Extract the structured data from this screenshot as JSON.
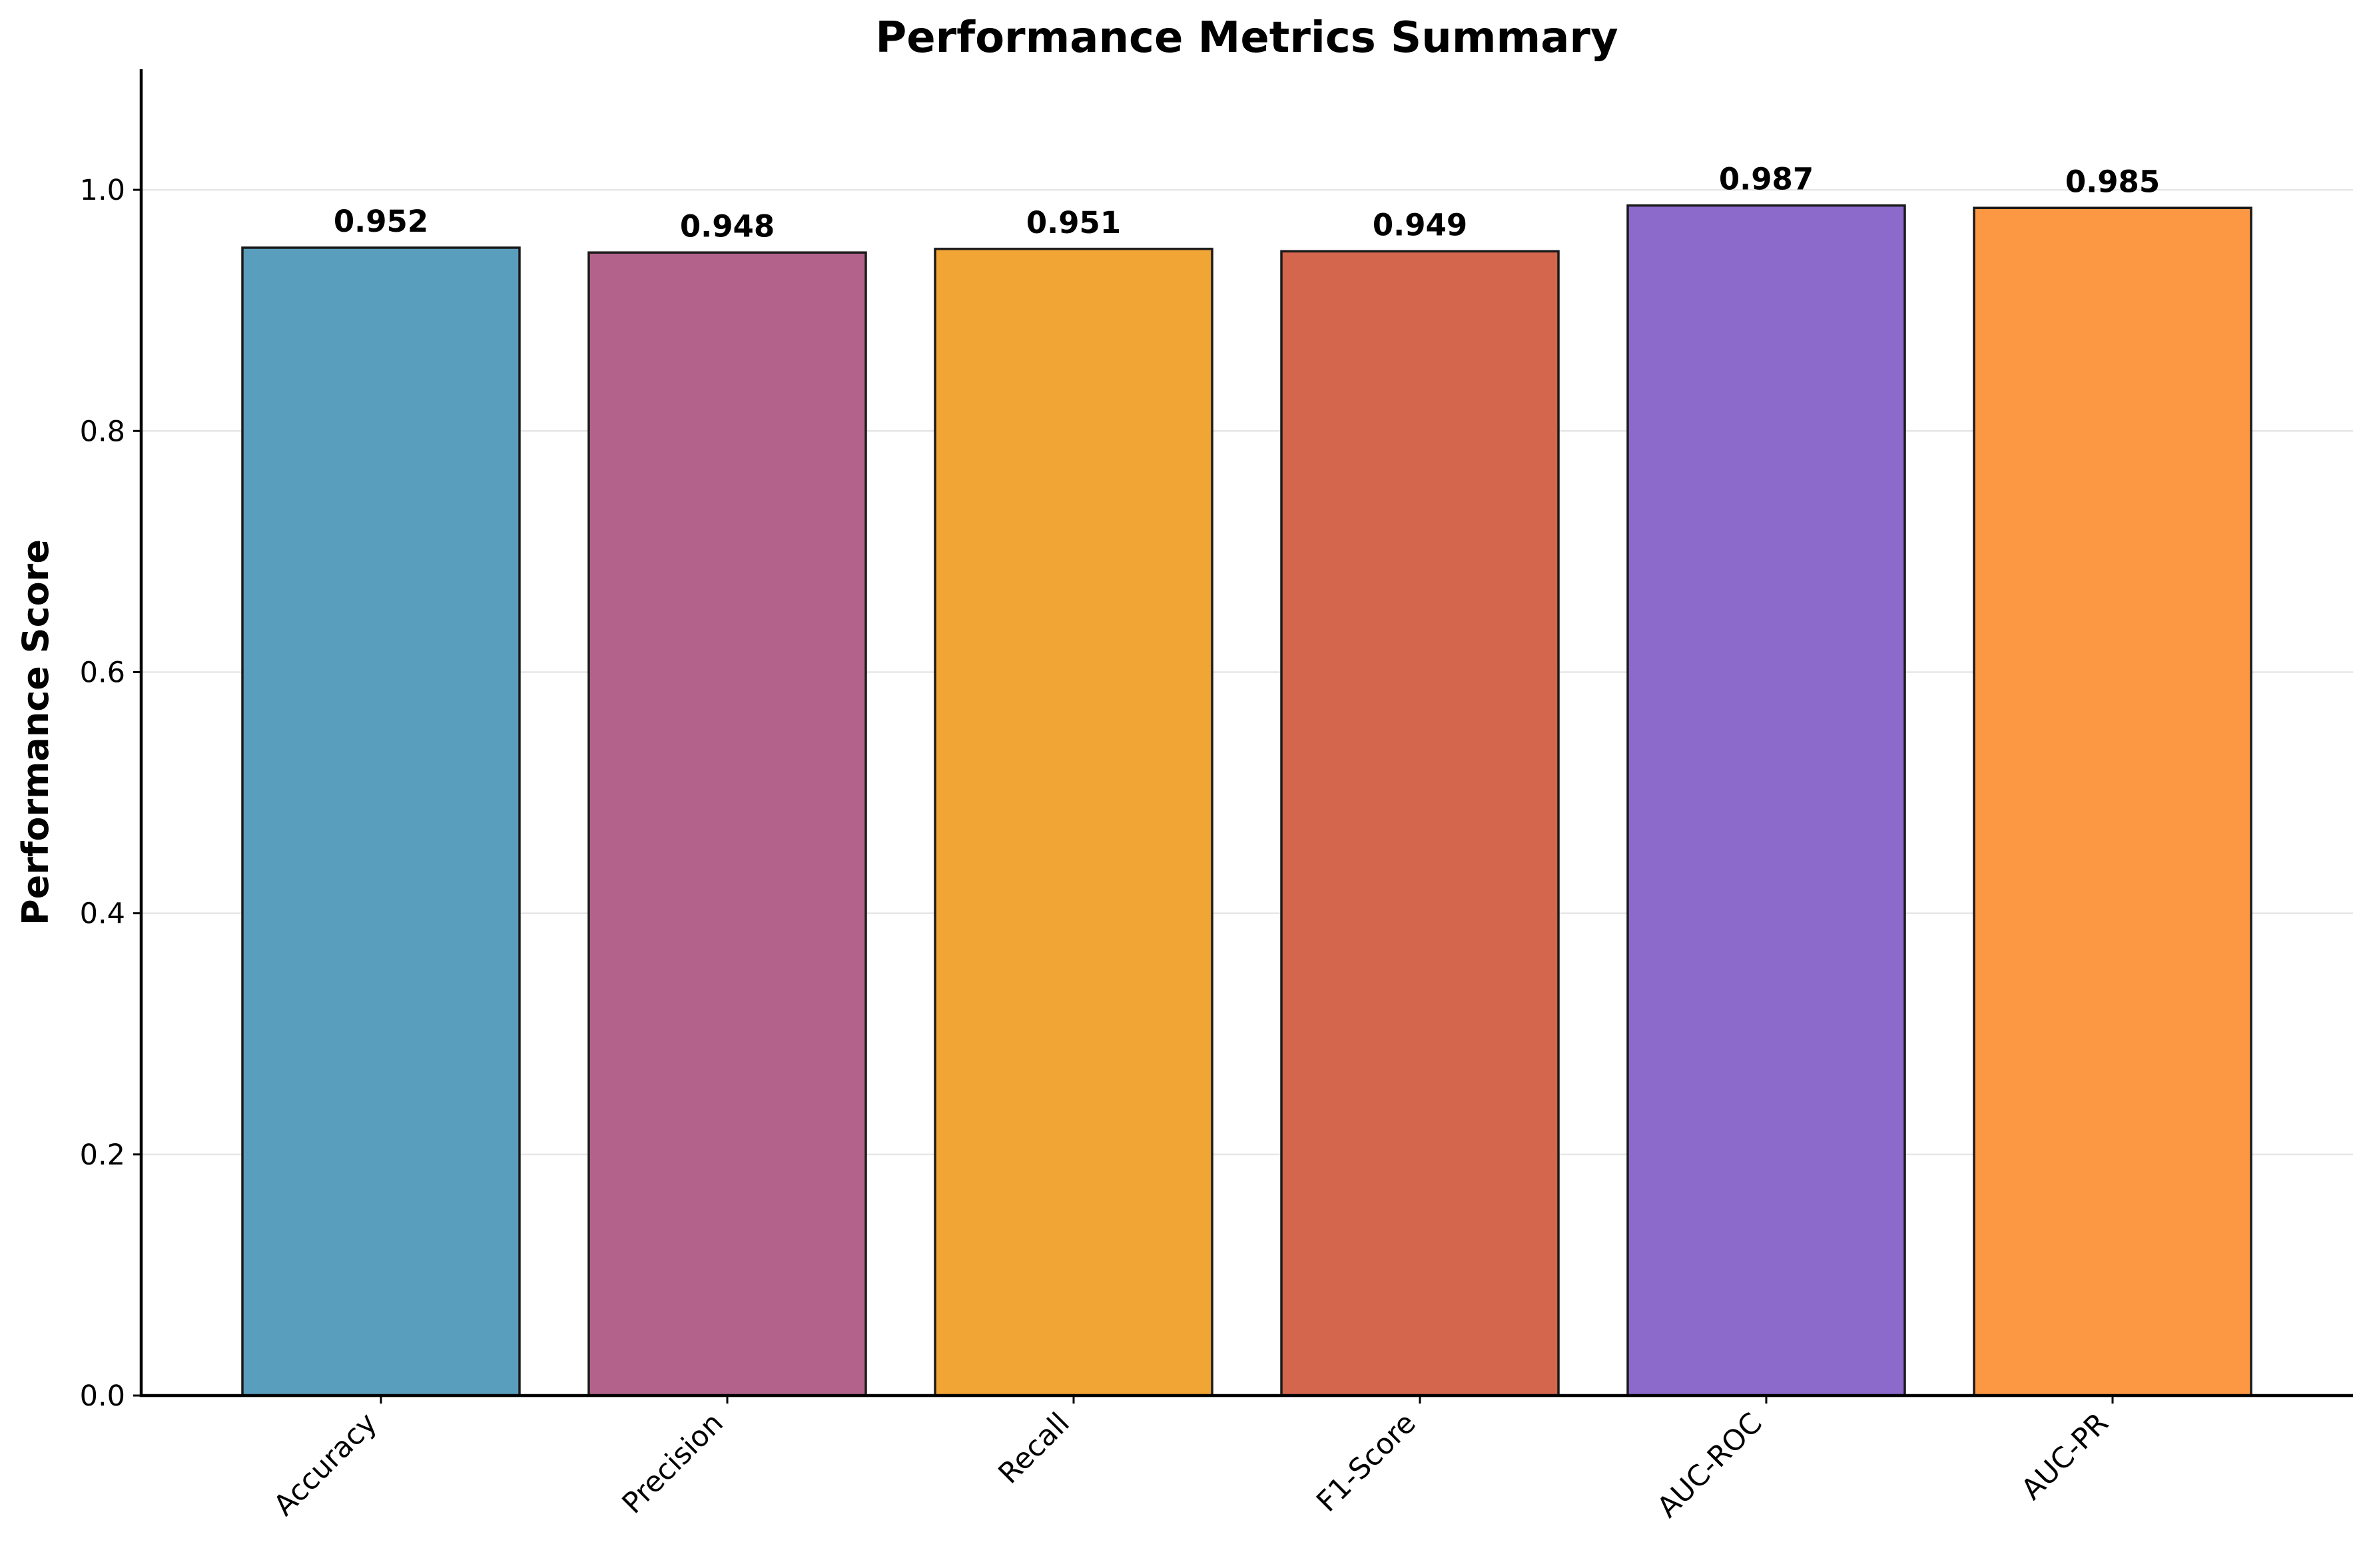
{
  "chart_data": {
    "type": "bar",
    "title": "Performance Metrics Summary",
    "xlabel": "",
    "ylabel": "Performance Score",
    "categories": [
      "Accuracy",
      "Precision",
      "Recall",
      "F1-Score",
      "AUC-ROC",
      "AUC-PR"
    ],
    "values": [
      0.952,
      0.948,
      0.951,
      0.949,
      0.987,
      0.985
    ],
    "value_labels": [
      "0.952",
      "0.948",
      "0.951",
      "0.949",
      "0.987",
      "0.985"
    ],
    "colors": [
      "#5a9ebd",
      "#b3638b",
      "#f0a535",
      "#d3664d",
      "#8b6acb",
      "#fc9843"
    ],
    "ylim": [
      0,
      1.1
    ],
    "yticks": [
      0.0,
      0.2,
      0.4,
      0.6,
      0.8,
      1.0
    ],
    "ytick_labels": [
      "0.0",
      "0.2",
      "0.4",
      "0.6",
      "0.8",
      "1.0"
    ],
    "grid": "horizontal",
    "legend": "none",
    "x_tick_rotation": 45
  }
}
